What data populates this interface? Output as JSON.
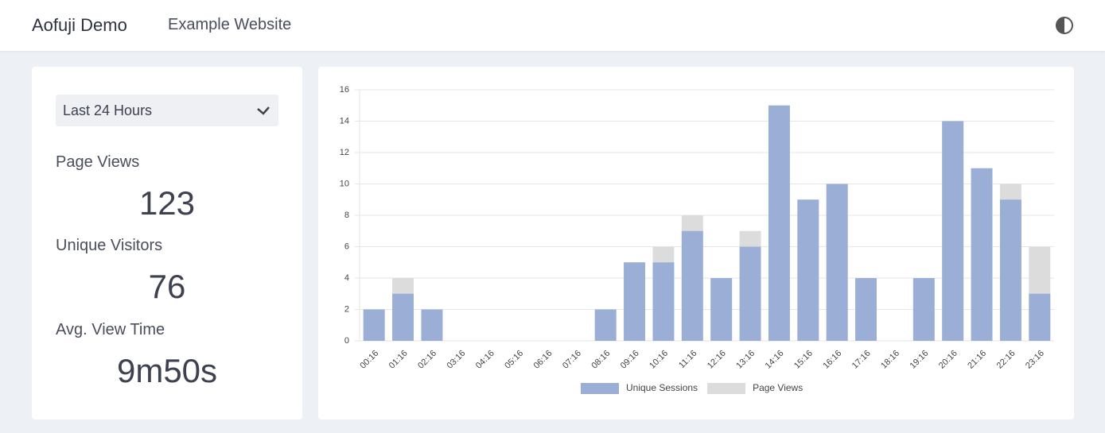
{
  "header": {
    "title": "Aofuji Demo",
    "subtitle": "Example Website"
  },
  "filter": "Last 24 Hours",
  "stats": [
    {
      "label": "Page Views",
      "value": 123
    },
    {
      "label": "Unique Visitors",
      "value": 76
    },
    {
      "label": "Avg. View Time",
      "value": "9m50s"
    }
  ],
  "chart_data": {
    "type": "bar",
    "categories": [
      "00:16",
      "01:16",
      "02:16",
      "03:16",
      "04:16",
      "05:16",
      "06:16",
      "07:16",
      "08:16",
      "09:16",
      "10:16",
      "11:16",
      "12:16",
      "13:16",
      "14:16",
      "15:16",
      "16:16",
      "17:16",
      "18:16",
      "19:16",
      "20:16",
      "21:16",
      "22:16",
      "23:16"
    ],
    "series": [
      {
        "name": "Unique Sessions",
        "color": "#9aaed6",
        "values": [
          2,
          3,
          2,
          0,
          0,
          0,
          0,
          0,
          2,
          5,
          5,
          7,
          4,
          6,
          15,
          9,
          10,
          4,
          0,
          4,
          14,
          11,
          9,
          3
        ]
      },
      {
        "name": "Page Views",
        "color": "#dcdcdc",
        "values": [
          2,
          4,
          2,
          0,
          0,
          0,
          0,
          0,
          2,
          5,
          6,
          8,
          4,
          7,
          15,
          9,
          10,
          4,
          0,
          4,
          14,
          11,
          10,
          6
        ]
      }
    ],
    "overlap": true,
    "ylim": [
      0,
      16
    ],
    "yticks": [
      0,
      2,
      4,
      6,
      8,
      10,
      12,
      14,
      16
    ],
    "grid": true,
    "legend": "bottom"
  }
}
